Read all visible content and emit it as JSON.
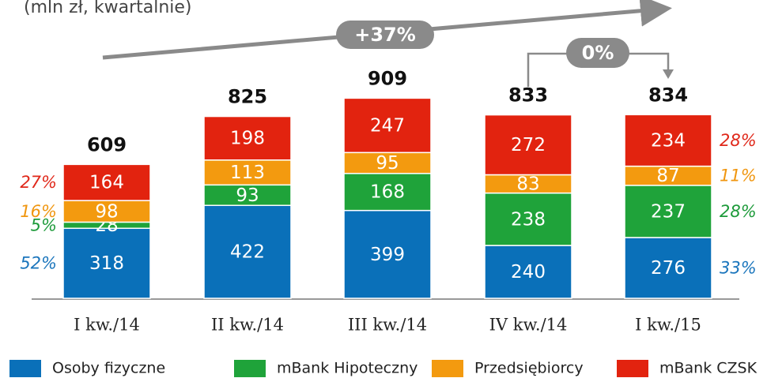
{
  "chart_data": {
    "type": "stacked_bar",
    "title": "(mln zł, kwartalnie)",
    "categories": [
      "I kw./14",
      "II kw./14",
      "III kw./14",
      "IV kw./14",
      "I kw./15"
    ],
    "series": [
      {
        "name": "Osoby fizyczne",
        "color": "#0a70b9",
        "label_color": "#1a75bc",
        "values": [
          318,
          422,
          399,
          240,
          276
        ],
        "shares": [
          "52%",
          "33%"
        ]
      },
      {
        "name": "mBank Hipoteczny",
        "color": "#1fa33a",
        "label_color": "#1d9a3a",
        "values": [
          28,
          93,
          168,
          238,
          237
        ],
        "shares": [
          "5%",
          "28%"
        ]
      },
      {
        "name": "Przedsiębiorcy",
        "color": "#f39a0f",
        "label_color": "#f0960f",
        "values": [
          98,
          113,
          95,
          83,
          87
        ],
        "shares": [
          "16%",
          "11%"
        ]
      },
      {
        "name": "mBank CZSK",
        "color": "#e2230f",
        "label_color": "#e0281a",
        "values": [
          164,
          198,
          247,
          272,
          234
        ],
        "shares": [
          "27%",
          "28%"
        ]
      }
    ],
    "totals": [
      609,
      825,
      909,
      833,
      834
    ],
    "annotations": [
      "+37%",
      "0%"
    ],
    "ylim": [
      0,
      1000
    ]
  }
}
